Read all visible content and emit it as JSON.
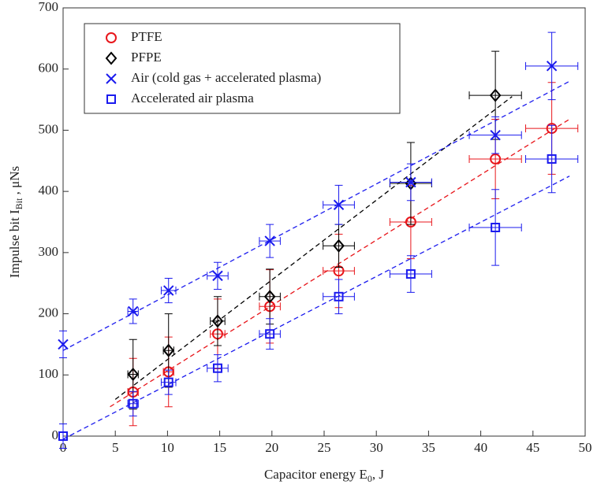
{
  "chart_data": {
    "type": "scatter",
    "xlabel": "Capacitor energy E",
    "xlabel_sub": "0",
    "xlabel_tail": ", J",
    "ylabel": "Impulse bit I",
    "ylabel_sub": "Bit",
    "ylabel_tail": " , μNs",
    "xlim": [
      0,
      50
    ],
    "xticks": [
      0,
      5,
      10,
      15,
      20,
      25,
      30,
      35,
      40,
      45,
      50
    ],
    "ylim": [
      0,
      700
    ],
    "yticks": [
      0,
      100,
      200,
      300,
      400,
      500,
      600,
      700
    ],
    "legend": "top-left",
    "series": [
      {
        "name": "PTFE",
        "marker": "circle",
        "color": "#e8161b",
        "x": [
          6.7,
          10.1,
          14.8,
          19.8,
          26.4,
          33.3,
          41.4,
          46.8
        ],
        "values": [
          72,
          105,
          167,
          212,
          270,
          350,
          453,
          503
        ],
        "y_error": [
          55,
          57,
          57,
          60,
          60,
          60,
          65,
          75
        ],
        "x_error": [
          0.5,
          0.5,
          0.7,
          1,
          1.5,
          2,
          2.5,
          2.5
        ]
      },
      {
        "name": "PFPE",
        "marker": "diamond",
        "color": "#000000",
        "x": [
          6.7,
          10.1,
          14.8,
          19.8,
          26.4,
          33.3,
          41.4
        ],
        "values": [
          101,
          140,
          188,
          228,
          311,
          413,
          557
        ],
        "y_error": [
          57,
          60,
          40,
          45,
          35,
          67,
          72
        ],
        "x_error": [
          0.5,
          0.5,
          0.7,
          1,
          1.5,
          2,
          2.5
        ]
      },
      {
        "name": "Air (cold gas + accelerated plasma)",
        "marker": "x",
        "color": "#1a1aee",
        "x": [
          0,
          6.7,
          10.1,
          14.8,
          19.8,
          26.4,
          33.3,
          41.4,
          46.8
        ],
        "values": [
          150,
          204,
          238,
          262,
          319,
          378,
          415,
          492,
          605
        ],
        "y_error": [
          22,
          20,
          20,
          22,
          27,
          32,
          30,
          30,
          55
        ],
        "x_error": [
          0,
          0.5,
          0.7,
          1,
          1,
          1.5,
          2,
          2.5,
          2.5
        ]
      },
      {
        "name": "Accelerated air plasma",
        "marker": "square",
        "color": "#1a1aee",
        "x": [
          0,
          6.7,
          10.1,
          14.8,
          19.8,
          26.4,
          33.3,
          41.4,
          46.8
        ],
        "values": [
          0,
          53,
          88,
          111,
          167,
          228,
          265,
          341,
          453
        ],
        "y_error": [
          20,
          20,
          20,
          22,
          25,
          28,
          30,
          62,
          55
        ],
        "x_error": [
          0,
          0.5,
          0.7,
          1,
          1,
          1.5,
          2,
          2.5,
          2.5
        ]
      }
    ],
    "fit_lines": [
      {
        "color": "#e8161b",
        "x": [
          4.5,
          48.5
        ],
        "values": [
          48,
          518
        ]
      },
      {
        "color": "#000000",
        "x": [
          5,
          43
        ],
        "values": [
          60,
          555
        ]
      },
      {
        "color": "#1a1aee",
        "x": [
          0,
          48.5
        ],
        "values": [
          140,
          580
        ]
      },
      {
        "color": "#1a1aee",
        "x": [
          0,
          48.5
        ],
        "values": [
          -5,
          425
        ]
      }
    ]
  }
}
